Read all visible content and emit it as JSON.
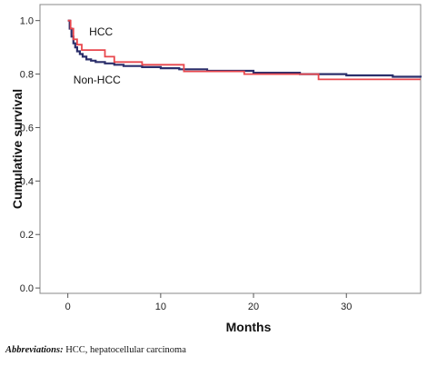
{
  "chart_data": {
    "type": "line",
    "step": true,
    "title": "",
    "xlabel": "Months",
    "ylabel": "Cumulative survival",
    "xlim": [
      -3,
      38
    ],
    "ylim": [
      -0.02,
      1.06
    ],
    "xticks": [
      0,
      10,
      20,
      30
    ],
    "yticks": [
      0.0,
      0.2,
      0.4,
      0.6,
      0.8,
      1.0
    ],
    "ytick_labels": [
      "0.0",
      "0.2",
      "0.4",
      "0.6",
      "0.8",
      "1.0"
    ],
    "grid": false,
    "legend": "none",
    "series": [
      {
        "name": "Non-HCC",
        "color": "#2b2f6b",
        "x": [
          0,
          0.2,
          0.4,
          0.6,
          0.8,
          1.0,
          1.3,
          1.6,
          2.0,
          2.5,
          3.0,
          4.0,
          5.0,
          6.0,
          8.0,
          10.0,
          12.0,
          15.0,
          20.0,
          25.0,
          30.0,
          35.0,
          38.0
        ],
        "y": [
          1.0,
          0.97,
          0.94,
          0.915,
          0.9,
          0.885,
          0.875,
          0.865,
          0.855,
          0.85,
          0.845,
          0.84,
          0.835,
          0.83,
          0.826,
          0.822,
          0.818,
          0.812,
          0.805,
          0.8,
          0.795,
          0.79,
          0.787
        ]
      },
      {
        "name": "HCC",
        "color": "#e8474d",
        "x": [
          0,
          0.3,
          0.6,
          1.0,
          1.5,
          4.0,
          5.0,
          8.0,
          12.5,
          19.0,
          27.0,
          38.0
        ],
        "y": [
          1.0,
          0.97,
          0.93,
          0.91,
          0.89,
          0.865,
          0.845,
          0.835,
          0.81,
          0.8,
          0.78,
          0.78
        ]
      }
    ],
    "annotations": [
      {
        "text": "HCC",
        "x": 2.3,
        "y": 0.945
      },
      {
        "text": "Non-HCC",
        "x": 0.6,
        "y": 0.765
      }
    ]
  },
  "caption": {
    "label": "Abbreviations:",
    "text": " HCC, hepatocellular carcinoma"
  }
}
